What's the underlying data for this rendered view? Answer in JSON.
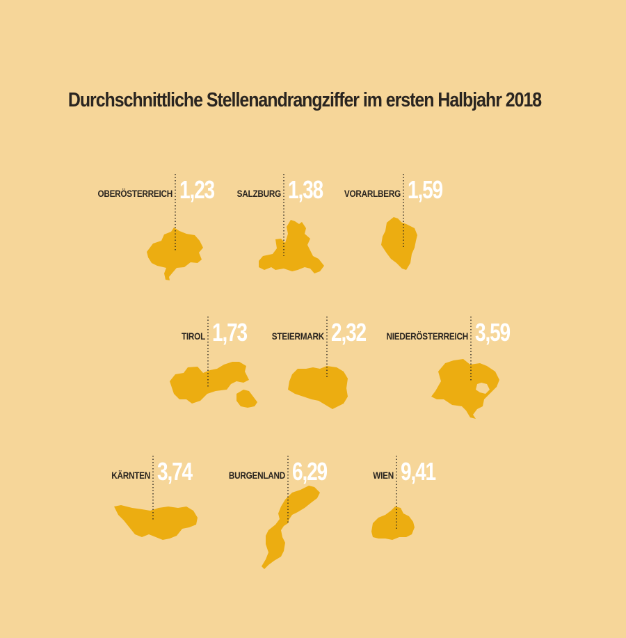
{
  "colors": {
    "background": "#f6d699",
    "shape": "#ecad11",
    "label_text": "#2a2520",
    "value_text": "#ffffff",
    "leader": "#2a2520"
  },
  "chart_data": {
    "type": "bar",
    "title": "Durchschnittliche Stellenandrangziffer im ersten Halbjahr 2018",
    "categories": [
      "OBERÖSTERREICH",
      "SALZBURG",
      "VORARLBERG",
      "TIROL",
      "STEIERMARK",
      "NIEDERÖSTERREICH",
      "KÄRNTEN",
      "BURGENLAND",
      "WIEN"
    ],
    "values": [
      1.23,
      1.38,
      1.59,
      1.73,
      2.32,
      3.59,
      3.74,
      6.29,
      9.41
    ],
    "value_labels": [
      "1,23",
      "1,38",
      "1,59",
      "1,73",
      "2,32",
      "3,59",
      "3,74",
      "6,29",
      "9,41"
    ],
    "regions": [
      {
        "name": "OBERÖSTERREICH",
        "value": 1.23,
        "value_label": "1,23"
      },
      {
        "name": "SALZBURG",
        "value": 1.38,
        "value_label": "1,38"
      },
      {
        "name": "VORARLBERG",
        "value": 1.59,
        "value_label": "1,59"
      },
      {
        "name": "TIROL",
        "value": 1.73,
        "value_label": "1,73"
      },
      {
        "name": "STEIERMARK",
        "value": 2.32,
        "value_label": "2,32"
      },
      {
        "name": "NIEDERÖSTERREICH",
        "value": 3.59,
        "value_label": "3,59"
      },
      {
        "name": "KÄRNTEN",
        "value": 3.74,
        "value_label": "3,74"
      },
      {
        "name": "BURGENLAND",
        "value": 6.29,
        "value_label": "6,29"
      },
      {
        "name": "WIEN",
        "value": 9.41,
        "value_label": "9,41"
      }
    ]
  }
}
